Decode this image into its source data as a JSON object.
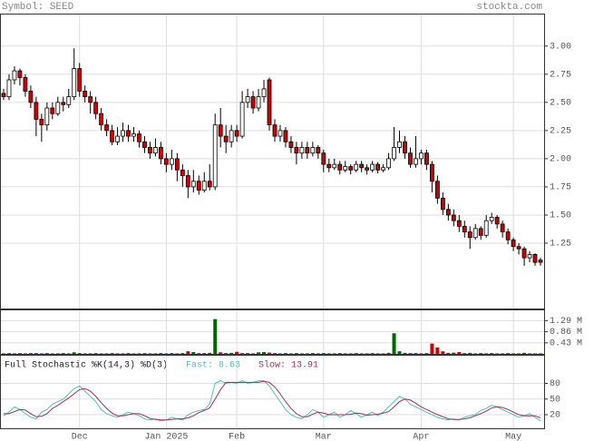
{
  "header": {
    "symbol": "Symbol: SEED",
    "site": "stockta.com"
  },
  "chart_data": [
    {
      "type": "candlestick",
      "up_color": "#ffffff",
      "down_color": "#cc0000",
      "categories": [
        null,
        null,
        null,
        null,
        null,
        null,
        null,
        null,
        null,
        null,
        null,
        null,
        null,
        null,
        "Dec",
        null,
        null,
        null,
        null,
        null,
        null,
        null,
        null,
        null,
        null,
        null,
        null,
        null,
        null,
        null,
        "Jan 2025",
        null,
        null,
        null,
        null,
        null,
        null,
        null,
        null,
        null,
        null,
        null,
        null,
        "Feb",
        null,
        null,
        null,
        null,
        null,
        null,
        null,
        null,
        null,
        null,
        null,
        null,
        null,
        null,
        null,
        "Mar",
        null,
        null,
        null,
        null,
        null,
        null,
        null,
        null,
        null,
        null,
        null,
        null,
        null,
        null,
        null,
        null,
        null,
        "Apr",
        null,
        null,
        null,
        null,
        null,
        null,
        null,
        null,
        null,
        null,
        null,
        null,
        null,
        null,
        null,
        null,
        "May",
        null,
        null,
        null,
        null,
        null
      ],
      "ylim": [
        0.67,
        3.28
      ],
      "yticks": [
        {
          "value": 3,
          "label": "3.00"
        },
        2.75,
        {
          "value": 2.5,
          "label": "2.50"
        },
        2.25,
        {
          "value": 2,
          "label": "2.00"
        },
        1.75,
        {
          "value": 1.5,
          "label": "1.50"
        },
        1.25
      ],
      "grid": true,
      "candles": [
        [
          2.58,
          2.62,
          2.52,
          2.55
        ],
        [
          2.55,
          2.75,
          2.52,
          2.7
        ],
        [
          2.7,
          2.82,
          2.66,
          2.78
        ],
        [
          2.78,
          2.8,
          2.65,
          2.72
        ],
        [
          2.72,
          2.75,
          2.55,
          2.6
        ],
        [
          2.6,
          2.65,
          2.45,
          2.5
        ],
        [
          2.5,
          2.55,
          2.2,
          2.35
        ],
        [
          2.35,
          2.4,
          2.15,
          2.3
        ],
        [
          2.3,
          2.5,
          2.25,
          2.45
        ],
        [
          2.45,
          2.5,
          2.35,
          2.4
        ],
        [
          2.4,
          2.55,
          2.38,
          2.5
        ],
        [
          2.5,
          2.55,
          2.42,
          2.48
        ],
        [
          2.48,
          2.62,
          2.45,
          2.55
        ],
        [
          2.55,
          2.98,
          2.52,
          2.8
        ],
        [
          2.8,
          2.85,
          2.55,
          2.6
        ],
        [
          2.6,
          2.65,
          2.5,
          2.55
        ],
        [
          2.55,
          2.6,
          2.4,
          2.5
        ],
        [
          2.5,
          2.55,
          2.35,
          2.4
        ],
        [
          2.4,
          2.45,
          2.25,
          2.3
        ],
        [
          2.3,
          2.35,
          2.2,
          2.25
        ],
        [
          2.25,
          2.3,
          2.12,
          2.15
        ],
        [
          2.15,
          2.28,
          2.12,
          2.2
        ],
        [
          2.2,
          2.32,
          2.15,
          2.25
        ],
        [
          2.25,
          2.3,
          2.15,
          2.2
        ],
        [
          2.2,
          2.28,
          2.15,
          2.22
        ],
        [
          2.22,
          2.25,
          2.1,
          2.15
        ],
        [
          2.15,
          2.2,
          2.05,
          2.1
        ],
        [
          2.1,
          2.15,
          2.0,
          2.05
        ],
        [
          2.05,
          2.18,
          2.02,
          2.1
        ],
        [
          2.1,
          2.15,
          1.95,
          2.0
        ],
        [
          2.0,
          2.05,
          1.88,
          1.95
        ],
        [
          1.95,
          2.08,
          1.9,
          2.0
        ],
        [
          2.0,
          2.05,
          1.8,
          1.9
        ],
        [
          1.9,
          1.95,
          1.75,
          1.85
        ],
        [
          1.85,
          1.9,
          1.65,
          1.75
        ],
        [
          1.75,
          1.9,
          1.7,
          1.8
        ],
        [
          1.8,
          1.85,
          1.68,
          1.72
        ],
        [
          1.72,
          1.88,
          1.7,
          1.8
        ],
        [
          1.8,
          1.95,
          1.72,
          1.75
        ],
        [
          1.75,
          2.4,
          1.72,
          2.3
        ],
        [
          2.3,
          2.45,
          2.1,
          2.2
        ],
        [
          2.2,
          2.3,
          2.05,
          2.15
        ],
        [
          2.15,
          2.3,
          2.1,
          2.25
        ],
        [
          2.25,
          2.3,
          2.15,
          2.2
        ],
        [
          2.2,
          2.6,
          2.18,
          2.5
        ],
        [
          2.5,
          2.62,
          2.45,
          2.55
        ],
        [
          2.55,
          2.6,
          2.4,
          2.45
        ],
        [
          2.45,
          2.62,
          2.42,
          2.55
        ],
        [
          2.55,
          2.7,
          2.5,
          2.62
        ],
        [
          2.7,
          2.72,
          2.25,
          2.3
        ],
        [
          2.3,
          2.35,
          2.15,
          2.2
        ],
        [
          2.2,
          2.3,
          2.15,
          2.25
        ],
        [
          2.25,
          2.28,
          2.1,
          2.15
        ],
        [
          2.15,
          2.2,
          2.05,
          2.1
        ],
        [
          2.1,
          2.15,
          1.95,
          2.05
        ],
        [
          2.05,
          2.15,
          2.0,
          2.1
        ],
        [
          2.1,
          2.15,
          2.0,
          2.05
        ],
        [
          2.05,
          2.15,
          2.02,
          2.1
        ],
        [
          2.1,
          2.12,
          2.0,
          2.05
        ],
        [
          2.05,
          2.08,
          1.88,
          1.95
        ],
        [
          1.95,
          2.0,
          1.88,
          1.92
        ],
        [
          1.92,
          2.0,
          1.9,
          1.95
        ],
        [
          1.95,
          1.98,
          1.86,
          1.9
        ],
        [
          1.9,
          1.98,
          1.88,
          1.93
        ],
        [
          1.93,
          1.95,
          1.86,
          1.9
        ],
        [
          1.9,
          1.98,
          1.88,
          1.95
        ],
        [
          1.95,
          1.98,
          1.88,
          1.92
        ],
        [
          1.92,
          1.95,
          1.86,
          1.9
        ],
        [
          1.9,
          1.98,
          1.88,
          1.95
        ],
        [
          1.95,
          1.97,
          1.87,
          1.9
        ],
        [
          1.9,
          1.95,
          1.88,
          1.92
        ],
        [
          1.92,
          2.05,
          1.9,
          2.0
        ],
        [
          2.0,
          2.28,
          1.98,
          2.1
        ],
        [
          2.1,
          2.25,
          2.05,
          2.15
        ],
        [
          2.15,
          2.2,
          2.0,
          2.05
        ],
        [
          2.05,
          2.1,
          1.92,
          1.95
        ],
        [
          1.95,
          2.2,
          1.92,
          2.0
        ],
        [
          2.0,
          2.08,
          1.95,
          2.05
        ],
        [
          2.05,
          2.08,
          1.9,
          1.95
        ],
        [
          1.95,
          1.98,
          1.7,
          1.8
        ],
        [
          1.8,
          1.85,
          1.6,
          1.65
        ],
        [
          1.65,
          1.7,
          1.5,
          1.55
        ],
        [
          1.55,
          1.6,
          1.45,
          1.5
        ],
        [
          1.5,
          1.55,
          1.4,
          1.45
        ],
        [
          1.45,
          1.5,
          1.35,
          1.4
        ],
        [
          1.4,
          1.45,
          1.3,
          1.35
        ],
        [
          1.35,
          1.4,
          1.2,
          1.3
        ],
        [
          1.3,
          1.42,
          1.28,
          1.38
        ],
        [
          1.38,
          1.4,
          1.28,
          1.32
        ],
        [
          1.32,
          1.5,
          1.3,
          1.45
        ],
        [
          1.45,
          1.52,
          1.42,
          1.48
        ],
        [
          1.48,
          1.5,
          1.38,
          1.42
        ],
        [
          1.42,
          1.45,
          1.3,
          1.35
        ],
        [
          1.35,
          1.38,
          1.24,
          1.28
        ],
        [
          1.28,
          1.3,
          1.18,
          1.22
        ],
        [
          1.22,
          1.25,
          1.15,
          1.2
        ],
        [
          1.2,
          1.22,
          1.05,
          1.12
        ],
        [
          1.12,
          1.18,
          1.08,
          1.15
        ],
        [
          1.15,
          1.16,
          1.05,
          1.08
        ],
        [
          1.1,
          1.12,
          1.05,
          1.08
        ]
      ]
    },
    {
      "type": "volume",
      "up_color": "#006600",
      "down_color": "#cc0000",
      "ylim": [
        0,
        1.69
      ],
      "yticks": [
        {
          "value": 1.29,
          "label": "1.29 M"
        },
        {
          "value": 0.86,
          "label": "0.86 M"
        },
        {
          "value": 0.43,
          "label": "0.43 M"
        }
      ],
      "grid": true,
      "values": [
        0.02,
        0.03,
        0.02,
        0.03,
        0.02,
        0.03,
        0.03,
        0.02,
        0.03,
        0.02,
        0.02,
        0.03,
        0.02,
        0.06,
        0.03,
        0.02,
        0.02,
        0.03,
        0.02,
        0.02,
        0.03,
        0.02,
        0.02,
        0.03,
        0.02,
        0.02,
        0.03,
        0.02,
        0.02,
        0.03,
        0.02,
        0.03,
        0.02,
        0.03,
        0.1,
        0.07,
        0.03,
        0.03,
        0.04,
        1.35,
        0.06,
        0.03,
        0.04,
        0.08,
        0.03,
        0.03,
        0.02,
        0.06,
        0.07,
        0.05,
        0.03,
        0.02,
        0.03,
        0.02,
        0.03,
        0.02,
        0.02,
        0.03,
        0.02,
        0.03,
        0.02,
        0.02,
        0.03,
        0.02,
        0.02,
        0.03,
        0.02,
        0.02,
        0.03,
        0.02,
        0.02,
        0.04,
        0.8,
        0.1,
        0.04,
        0.03,
        0.03,
        0.02,
        0.03,
        0.4,
        0.25,
        0.1,
        0.04,
        0.05,
        0.07,
        0.03,
        0.04,
        0.02,
        0.03,
        0.02,
        0.03,
        0.02,
        0.02,
        0.03,
        0.02,
        0.02,
        0.04,
        0.02,
        0.02,
        0.02
      ]
    },
    {
      "type": "line",
      "title": "Full Stochastic %K(14,3) %D(3)",
      "ylim": [
        -6,
        133
      ],
      "yticks": [
        80,
        50,
        20
      ],
      "grid": true,
      "series": [
        {
          "name": "Fast: 8.63",
          "color": "#55bbbb",
          "values": [
            18,
            25,
            35,
            30,
            22,
            15,
            12,
            25,
            30,
            40,
            45,
            50,
            60,
            70,
            75,
            65,
            55,
            45,
            30,
            22,
            18,
            15,
            20,
            25,
            22,
            18,
            12,
            10,
            12,
            8,
            10,
            15,
            12,
            10,
            20,
            25,
            28,
            30,
            40,
            80,
            85,
            80,
            82,
            80,
            85,
            80,
            82,
            85,
            85,
            75,
            60,
            45,
            30,
            20,
            15,
            12,
            20,
            30,
            25,
            15,
            20,
            25,
            15,
            20,
            28,
            22,
            15,
            20,
            25,
            18,
            25,
            35,
            45,
            55,
            50,
            40,
            35,
            30,
            25,
            20,
            15,
            12,
            10,
            12,
            10,
            15,
            18,
            20,
            28,
            32,
            38,
            35,
            30,
            25,
            20,
            15,
            18,
            22,
            15,
            8.63
          ]
        },
        {
          "name": "Slow: 13.91",
          "color": "#993355",
          "values": [
            22,
            22,
            26,
            30,
            29,
            22,
            16,
            17,
            22,
            32,
            38,
            45,
            52,
            60,
            68,
            70,
            65,
            55,
            43,
            32,
            23,
            18,
            18,
            20,
            22,
            22,
            18,
            13,
            11,
            10,
            10,
            11,
            12,
            12,
            14,
            18,
            24,
            28,
            33,
            50,
            68,
            82,
            82,
            82,
            82,
            82,
            82,
            82,
            84,
            82,
            73,
            60,
            45,
            32,
            22,
            16,
            16,
            21,
            25,
            23,
            20,
            20,
            20,
            20,
            21,
            23,
            22,
            19,
            20,
            21,
            23,
            26,
            35,
            45,
            50,
            48,
            42,
            35,
            30,
            25,
            20,
            16,
            12,
            11,
            11,
            12,
            14,
            18,
            22,
            27,
            33,
            35,
            34,
            30,
            25,
            20,
            18,
            18,
            18,
            13.91
          ]
        }
      ]
    }
  ]
}
